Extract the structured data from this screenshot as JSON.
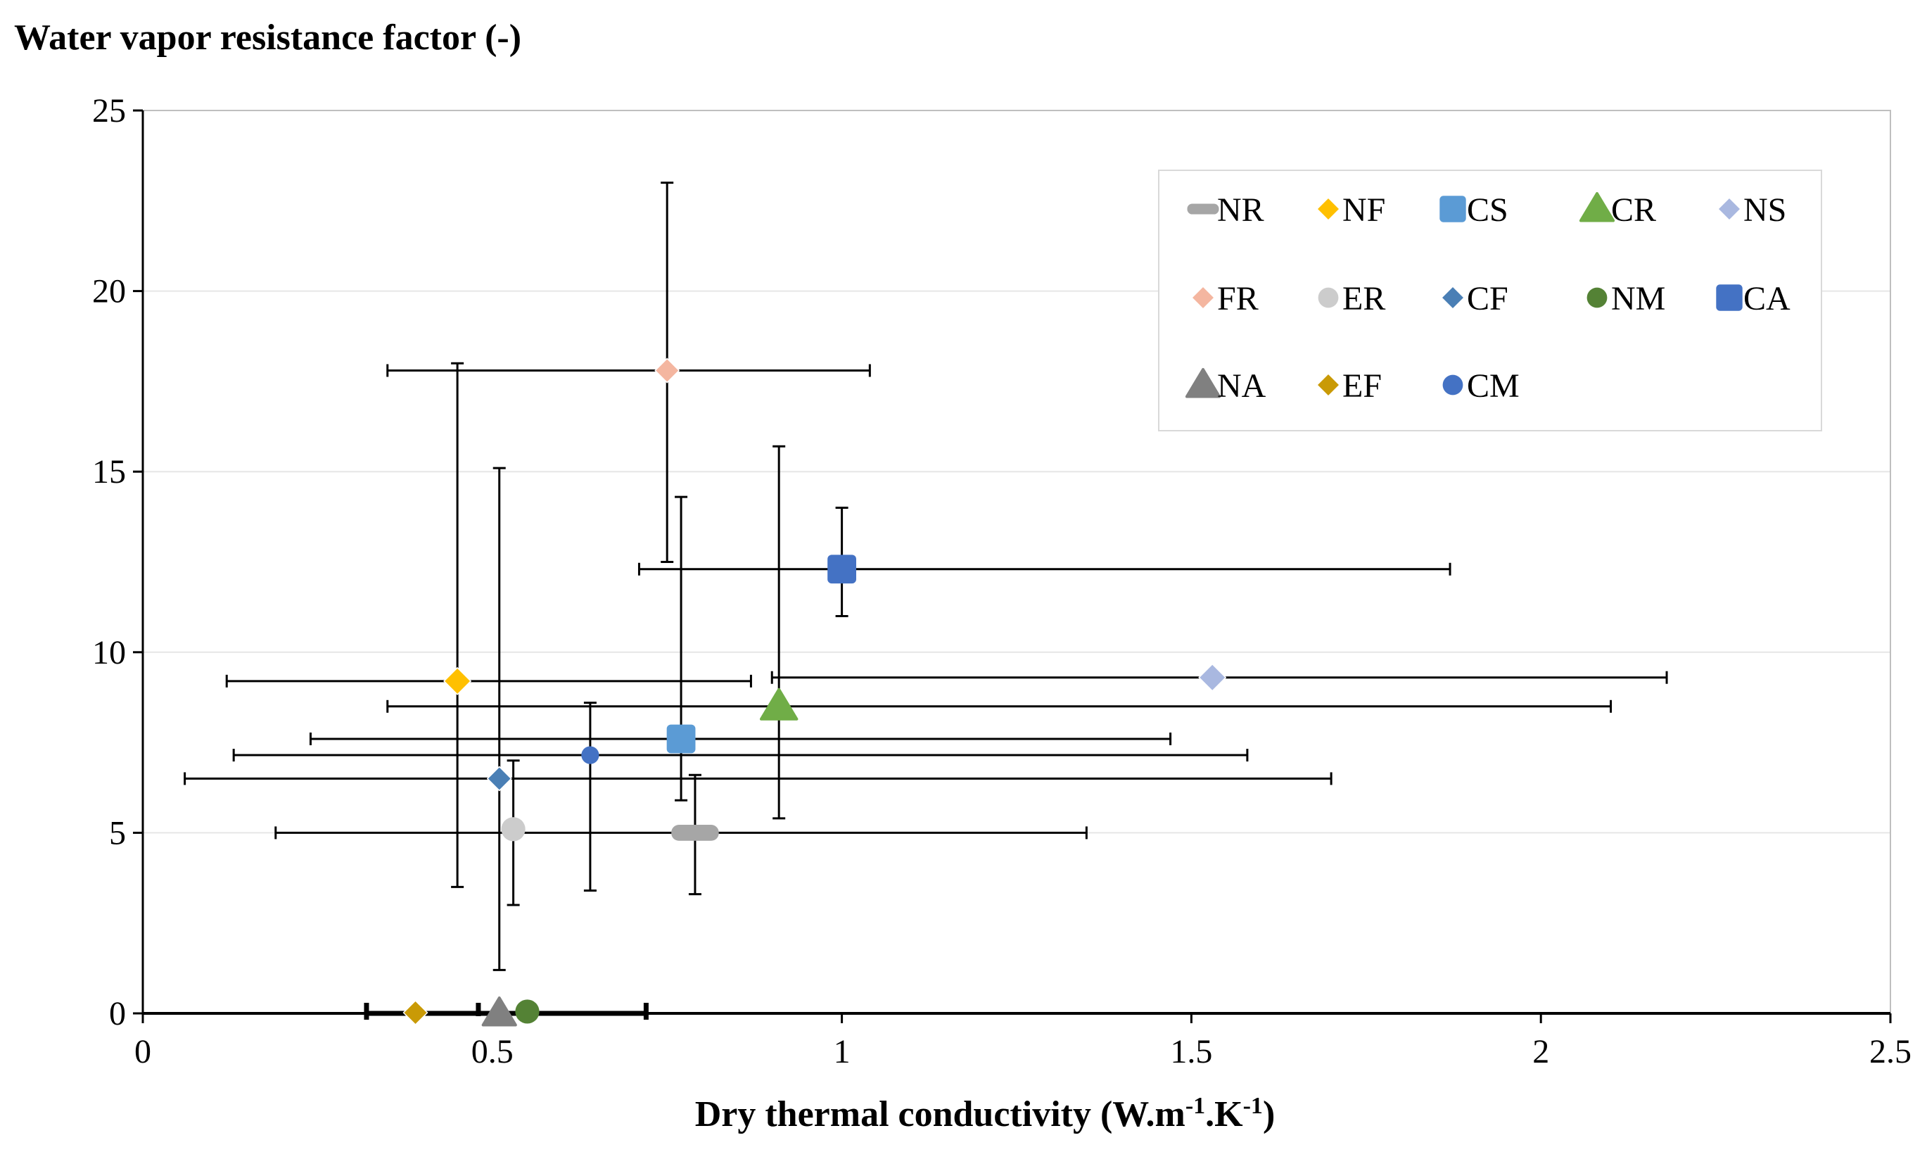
{
  "chart_data": {
    "type": "scatter",
    "title": "",
    "ylabel": "Water vapor resistance factor (-)",
    "xlabel": {
      "parts": [
        "Dry thermal conductivity (W.m",
        "-1",
        ".K",
        "-1",
        ")"
      ]
    },
    "xlim": [
      0,
      2.5
    ],
    "ylim": [
      0,
      25
    ],
    "xticks": [
      0,
      0.5,
      1,
      1.5,
      2,
      2.5
    ],
    "xtick_labels": [
      "0",
      "0.5",
      "1",
      "1.5",
      "2",
      "2.5"
    ],
    "yticks": [
      0,
      5,
      10,
      15,
      20,
      25
    ],
    "ytick_labels": [
      "0",
      "5",
      "10",
      "15",
      "20",
      "25"
    ],
    "grid": "horizontal",
    "legend": "top-right",
    "series": [
      {
        "name": "NR",
        "marker": "dash",
        "color": "#a6a6a6",
        "x": 0.79,
        "y": 5.0,
        "xerr": [
          0.19,
          1.35
        ],
        "yerr": [
          3.3,
          6.6
        ]
      },
      {
        "name": "NF",
        "marker": "diamond",
        "color": "#ffc000",
        "x": 0.45,
        "y": 9.2,
        "xerr": [
          0.12,
          0.87
        ],
        "yerr": [
          3.5,
          18.0
        ]
      },
      {
        "name": "CS",
        "marker": "square",
        "color": "#5b9bd5",
        "x": 0.77,
        "y": 7.6,
        "xerr": [
          0.24,
          1.47
        ],
        "yerr": [
          5.9,
          14.3
        ]
      },
      {
        "name": "CR",
        "marker": "triangle",
        "color": "#70ad47",
        "x": 0.91,
        "y": 8.5,
        "xerr": [
          0.35,
          2.1
        ],
        "yerr": [
          5.4,
          15.7
        ]
      },
      {
        "name": "NS",
        "marker": "diamond",
        "color": "#a9b8e0",
        "x": 1.53,
        "y": 9.3,
        "xerr": [
          0.9,
          2.18
        ],
        "yerr": null
      },
      {
        "name": "FR",
        "marker": "diamond",
        "color": "#f4b6a0",
        "x": 0.75,
        "y": 17.8,
        "xerr": [
          0.35,
          1.04
        ],
        "yerr": [
          12.5,
          23.0
        ]
      },
      {
        "name": "ER",
        "marker": "circle",
        "color": "#cccccc",
        "x": 0.53,
        "y": 5.1,
        "xerr": null,
        "yerr": [
          3.0,
          7.0
        ]
      },
      {
        "name": "CF",
        "marker": "diamond",
        "color": "#4a7fb5",
        "x": 0.51,
        "y": 6.5,
        "xerr": [
          0.06,
          1.7
        ],
        "yerr": [
          1.2,
          15.1
        ]
      },
      {
        "name": "NM",
        "marker": "circle",
        "color": "#548235",
        "x": 0.55,
        "y": 0.05,
        "xerr": null,
        "yerr": null
      },
      {
        "name": "CA",
        "marker": "square",
        "color": "#4472c4",
        "x": 1.0,
        "y": 12.3,
        "xerr": [
          0.71,
          1.87
        ],
        "yerr": [
          11.0,
          14.0
        ]
      },
      {
        "name": "NA",
        "marker": "triangle",
        "color": "#808080",
        "x": 0.51,
        "y": 0.0,
        "xerr": [
          0.32,
          0.72
        ],
        "yerr": null
      },
      {
        "name": "EF",
        "marker": "diamond",
        "color": "#c99a06",
        "x": 0.39,
        "y": 0.02,
        "xerr": null,
        "yerr": null
      },
      {
        "name": "CM",
        "marker": "circle",
        "color": "#4472c4",
        "x": 0.64,
        "y": 7.15,
        "xerr": [
          0.13,
          1.58
        ],
        "yerr": [
          3.4,
          8.6
        ]
      }
    ]
  }
}
